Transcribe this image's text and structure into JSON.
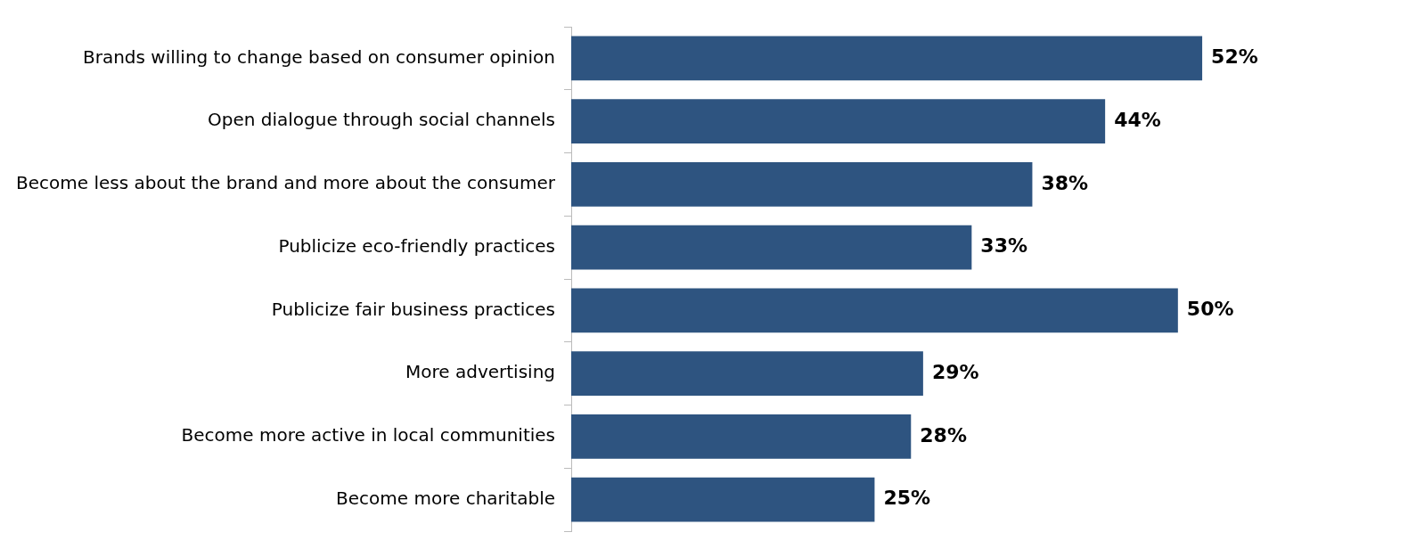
{
  "chart_data": {
    "type": "bar",
    "orientation": "horizontal",
    "categories": [
      "Brands willing to change based on consumer opinion",
      "Open dialogue through social channels",
      "Become less about the brand and more about the consumer",
      "Publicize eco-friendly practices",
      "Publicize fair business practices",
      "More advertising",
      "Become more active in local communities",
      "Become more charitable"
    ],
    "values": [
      52,
      44,
      38,
      33,
      50,
      29,
      28,
      25
    ],
    "value_labels": [
      "52%",
      "44%",
      "38%",
      "33%",
      "50%",
      "29%",
      "28%",
      "25%"
    ],
    "color": "#2e5480",
    "grid": false,
    "legend": false
  }
}
